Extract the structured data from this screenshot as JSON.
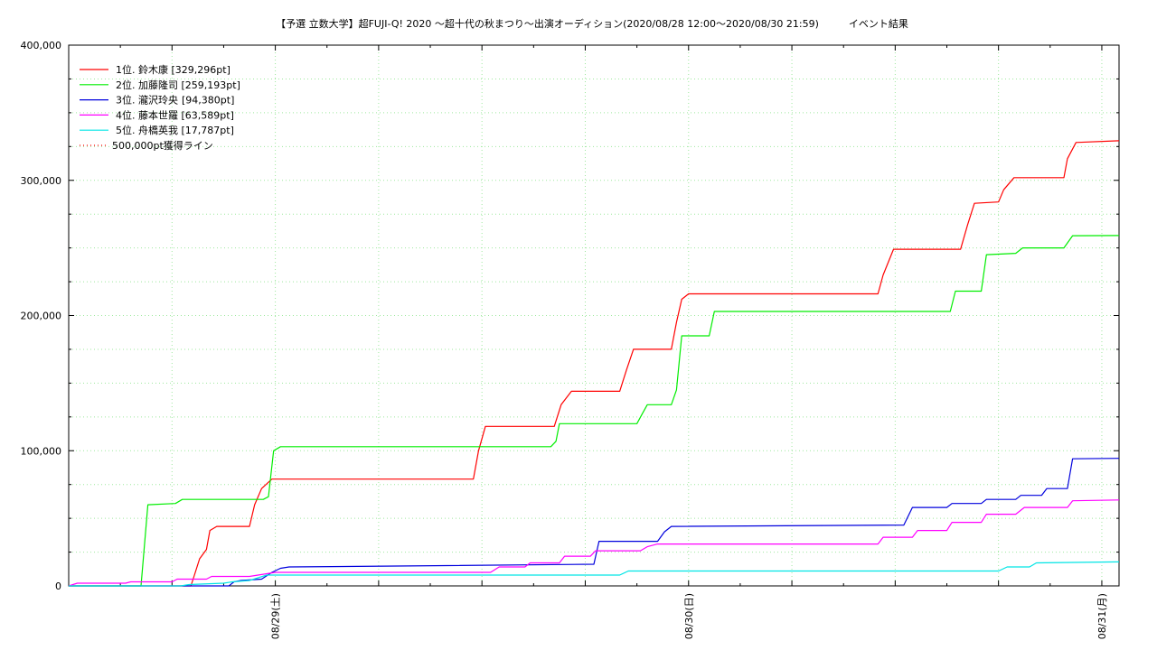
{
  "chart_data": {
    "type": "line",
    "title": "【予選 立数大学】超FUJI-Q! 2020 〜超十代の秋まつり〜出演オーディション(2020/08/28 12:00〜2020/08/30 21:59)　　　イベント結果",
    "xlabel": "",
    "ylabel": "",
    "ylim": [
      0,
      400000
    ],
    "xlim_hours": [
      0,
      61
    ],
    "x_unit": "hours since 2020/08/28 12:00",
    "yticks": [
      {
        "value": 0,
        "label": "0"
      },
      {
        "value": 100000,
        "label": "100,000"
      },
      {
        "value": 200000,
        "label": "200,000"
      },
      {
        "value": 300000,
        "label": "300,000"
      },
      {
        "value": 400000,
        "label": "400,000"
      }
    ],
    "xticks": [
      {
        "value": 12,
        "label": "08/29(土)"
      },
      {
        "value": 36,
        "label": "08/30(日)"
      },
      {
        "value": 60,
        "label": "08/31(月)"
      }
    ],
    "grid": true,
    "legend_position": "top-left",
    "series": [
      {
        "name": "1位. 鈴木康 [329,296pt]",
        "color": "#ff0000",
        "points": [
          [
            0,
            0
          ],
          [
            7.1,
            0
          ],
          [
            7.3,
            8000
          ],
          [
            7.6,
            20000
          ],
          [
            8.0,
            27000
          ],
          [
            8.2,
            41000
          ],
          [
            8.6,
            44000
          ],
          [
            10.5,
            44000
          ],
          [
            10.8,
            60000
          ],
          [
            11.2,
            72000
          ],
          [
            11.8,
            79000
          ],
          [
            23.5,
            79000
          ],
          [
            23.8,
            100000
          ],
          [
            24.2,
            118000
          ],
          [
            28.2,
            118000
          ],
          [
            28.6,
            134000
          ],
          [
            29.2,
            144000
          ],
          [
            32.0,
            144000
          ],
          [
            32.4,
            160000
          ],
          [
            32.8,
            175000
          ],
          [
            35.0,
            175000
          ],
          [
            35.3,
            195000
          ],
          [
            35.6,
            212000
          ],
          [
            36.0,
            216000
          ],
          [
            47.0,
            216000
          ],
          [
            47.3,
            230000
          ],
          [
            47.9,
            249000
          ],
          [
            51.8,
            249000
          ],
          [
            52.2,
            267000
          ],
          [
            52.6,
            283000
          ],
          [
            54.0,
            284000
          ],
          [
            54.3,
            293000
          ],
          [
            54.9,
            302000
          ],
          [
            57.8,
            302000
          ],
          [
            58.0,
            316000
          ],
          [
            58.5,
            328000
          ],
          [
            61.0,
            329296
          ]
        ]
      },
      {
        "name": "2位. 加藤隆司 [259,193pt]",
        "color": "#00ee00",
        "points": [
          [
            0,
            0
          ],
          [
            4.2,
            0
          ],
          [
            4.4,
            30000
          ],
          [
            4.6,
            60000
          ],
          [
            6.2,
            61000
          ],
          [
            6.6,
            64000
          ],
          [
            11.3,
            64000
          ],
          [
            11.6,
            66000
          ],
          [
            11.9,
            100000
          ],
          [
            12.3,
            103000
          ],
          [
            28.0,
            103000
          ],
          [
            28.3,
            107000
          ],
          [
            28.5,
            120000
          ],
          [
            33.0,
            120000
          ],
          [
            33.3,
            127000
          ],
          [
            33.6,
            134000
          ],
          [
            35.0,
            134000
          ],
          [
            35.3,
            145000
          ],
          [
            35.6,
            185000
          ],
          [
            37.2,
            185000
          ],
          [
            37.5,
            203000
          ],
          [
            51.2,
            203000
          ],
          [
            51.5,
            218000
          ],
          [
            53.0,
            218000
          ],
          [
            53.3,
            245000
          ],
          [
            55.0,
            246000
          ],
          [
            55.4,
            250000
          ],
          [
            57.8,
            250000
          ],
          [
            58.3,
            259000
          ],
          [
            61.0,
            259193
          ]
        ]
      },
      {
        "name": "3位. 瀧沢玲央",
        "suffix": "[94,380pt]",
        "color": "#0000dd",
        "points": [
          [
            0,
            0
          ],
          [
            9.3,
            0
          ],
          [
            9.6,
            3000
          ],
          [
            10.0,
            4000
          ],
          [
            11.2,
            5000
          ],
          [
            11.8,
            10000
          ],
          [
            12.3,
            13000
          ],
          [
            12.8,
            14000
          ],
          [
            22.0,
            15000
          ],
          [
            30.5,
            16000
          ],
          [
            30.8,
            33000
          ],
          [
            34.2,
            33000
          ],
          [
            34.6,
            40000
          ],
          [
            35.0,
            44000
          ],
          [
            48.5,
            45000
          ],
          [
            49.0,
            58000
          ],
          [
            51.0,
            58000
          ],
          [
            51.3,
            61000
          ],
          [
            53.0,
            61000
          ],
          [
            53.3,
            64000
          ],
          [
            55.0,
            64000
          ],
          [
            55.3,
            67000
          ],
          [
            56.5,
            67000
          ],
          [
            56.8,
            72000
          ],
          [
            58.0,
            72000
          ],
          [
            58.3,
            94000
          ],
          [
            61.0,
            94380
          ]
        ]
      },
      {
        "name": "4位. 藤本世羅 [63,589pt]",
        "color": "#ff00ff",
        "points": [
          [
            0,
            0
          ],
          [
            0.5,
            2000
          ],
          [
            3.3,
            2000
          ],
          [
            3.6,
            3000
          ],
          [
            6.0,
            3000
          ],
          [
            6.3,
            5000
          ],
          [
            8.0,
            5000
          ],
          [
            8.3,
            7000
          ],
          [
            10.5,
            7000
          ],
          [
            11.0,
            8000
          ],
          [
            11.5,
            9000
          ],
          [
            12.0,
            10000
          ],
          [
            24.5,
            10000
          ],
          [
            25.0,
            14000
          ],
          [
            26.5,
            14000
          ],
          [
            26.8,
            17000
          ],
          [
            28.5,
            17000
          ],
          [
            28.8,
            22000
          ],
          [
            30.3,
            22000
          ],
          [
            30.6,
            26000
          ],
          [
            33.2,
            26000
          ],
          [
            33.6,
            29000
          ],
          [
            34.2,
            31000
          ],
          [
            47.0,
            31000
          ],
          [
            47.3,
            36000
          ],
          [
            49.0,
            36000
          ],
          [
            49.3,
            41000
          ],
          [
            51.0,
            41000
          ],
          [
            51.3,
            47000
          ],
          [
            53.0,
            47000
          ],
          [
            53.3,
            53000
          ],
          [
            55.0,
            53000
          ],
          [
            55.5,
            58000
          ],
          [
            58.0,
            58000
          ],
          [
            58.3,
            63000
          ],
          [
            61.0,
            63589
          ]
        ]
      },
      {
        "name": "5位. 舟橋英我 [17,787pt]",
        "color": "#00e5e5",
        "points": [
          [
            0,
            0
          ],
          [
            6.5,
            0
          ],
          [
            7.0,
            1000
          ],
          [
            9.0,
            2000
          ],
          [
            9.5,
            3000
          ],
          [
            10.5,
            4000
          ],
          [
            11.0,
            6000
          ],
          [
            11.5,
            8000
          ],
          [
            32.0,
            8000
          ],
          [
            32.5,
            11000
          ],
          [
            54.0,
            11000
          ],
          [
            54.5,
            14000
          ],
          [
            55.8,
            14000
          ],
          [
            56.2,
            17000
          ],
          [
            61.0,
            17787
          ]
        ]
      },
      {
        "name": "500,000pt獲得ライン",
        "color": "#ff0000",
        "dashed": true,
        "points": []
      }
    ]
  }
}
